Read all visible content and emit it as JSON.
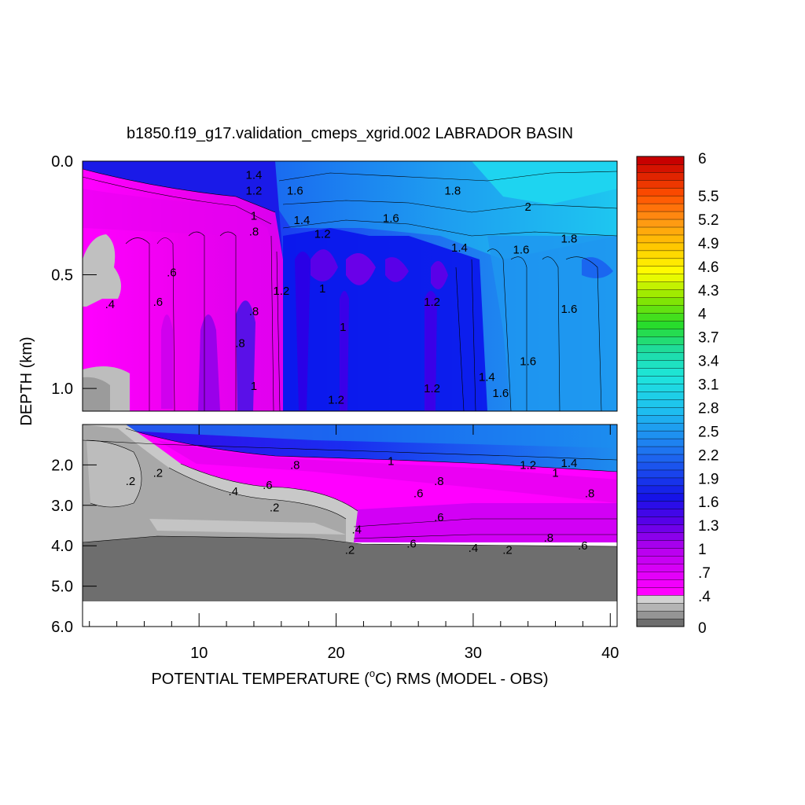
{
  "chart_data": {
    "type": "heatmap",
    "title": "b1850.f19_g17.validation_cmeps_xgrid.002 LABRADOR BASIN",
    "xlabel_pre": "POTENTIAL TEMPERATURE (",
    "xlabel_sup": "o",
    "xlabel_post": "C) RMS (MODEL - OBS)",
    "ylabel": "DEPTH (km)",
    "xlim": [
      1.5,
      40.5
    ],
    "x_ticks": [
      10,
      20,
      30,
      40
    ],
    "top_panel": {
      "ylim": [
        0.0,
        1.1
      ],
      "y_ticks": [
        "0.0",
        "0.5",
        "1.0"
      ],
      "y_values": [
        0.0,
        0.5,
        1.0
      ]
    },
    "bottom_panel": {
      "ylim": [
        1.0,
        6.0
      ],
      "y_ticks": [
        "2.0",
        "3.0",
        "4.0",
        "5.0",
        "6.0"
      ],
      "y_values": [
        2.0,
        3.0,
        4.0,
        5.0,
        6.0
      ]
    },
    "colorbar": {
      "range": [
        0,
        6
      ],
      "tick_labels": [
        "6",
        "5.5",
        "5.2",
        "4.9",
        "4.6",
        "4.3",
        "4",
        "3.7",
        "3.4",
        "3.1",
        "2.8",
        "2.5",
        "2.2",
        "1.9",
        "1.6",
        "1.3",
        "1",
        ".7",
        ".4",
        "0"
      ],
      "low_colors": [
        "#6e6e6e",
        "#959595",
        "#b4b4b4",
        "#d2d2d2"
      ]
    },
    "contour_labels": [
      {
        "text": "1.4",
        "x": 14,
        "y": 0.06,
        "panel": "top"
      },
      {
        "text": "1.2",
        "x": 14,
        "y": 0.13,
        "panel": "top"
      },
      {
        "text": "1.6",
        "x": 17,
        "y": 0.13,
        "panel": "top"
      },
      {
        "text": "1.8",
        "x": 28.5,
        "y": 0.13,
        "panel": "top"
      },
      {
        "text": "2",
        "x": 34,
        "y": 0.2,
        "panel": "top"
      },
      {
        "text": "1",
        "x": 14,
        "y": 0.24,
        "panel": "top"
      },
      {
        "text": "1.4",
        "x": 17.5,
        "y": 0.26,
        "panel": "top"
      },
      {
        "text": "1.6",
        "x": 24,
        "y": 0.25,
        "panel": "top"
      },
      {
        "text": "1.8",
        "x": 37,
        "y": 0.34,
        "panel": "top"
      },
      {
        "text": ".8",
        "x": 14,
        "y": 0.31,
        "panel": "top"
      },
      {
        "text": "1.2",
        "x": 19,
        "y": 0.32,
        "panel": "top"
      },
      {
        "text": "1.4",
        "x": 29,
        "y": 0.38,
        "panel": "top"
      },
      {
        "text": "1.6",
        "x": 33.5,
        "y": 0.39,
        "panel": "top"
      },
      {
        "text": ".6",
        "x": 8,
        "y": 0.49,
        "panel": "top"
      },
      {
        "text": "1.2",
        "x": 16,
        "y": 0.57,
        "panel": "top"
      },
      {
        "text": "1",
        "x": 19,
        "y": 0.56,
        "panel": "top"
      },
      {
        "text": ".6",
        "x": 7,
        "y": 0.62,
        "panel": "top"
      },
      {
        "text": ".4",
        "x": 3.5,
        "y": 0.63,
        "panel": "top"
      },
      {
        "text": ".8",
        "x": 14,
        "y": 0.66,
        "panel": "top"
      },
      {
        "text": "1.2",
        "x": 27,
        "y": 0.62,
        "panel": "top"
      },
      {
        "text": "1.6",
        "x": 37,
        "y": 0.65,
        "panel": "top"
      },
      {
        "text": "1",
        "x": 20.5,
        "y": 0.73,
        "panel": "top"
      },
      {
        "text": ".8",
        "x": 13,
        "y": 0.8,
        "panel": "top"
      },
      {
        "text": "1.6",
        "x": 34,
        "y": 0.88,
        "panel": "top"
      },
      {
        "text": "1.4",
        "x": 31,
        "y": 0.95,
        "panel": "top"
      },
      {
        "text": "1",
        "x": 14,
        "y": 0.99,
        "panel": "top"
      },
      {
        "text": "1.2",
        "x": 20,
        "y": 1.05,
        "panel": "top"
      },
      {
        "text": "1.2",
        "x": 27,
        "y": 1.0,
        "panel": "top"
      },
      {
        "text": "1.6",
        "x": 32,
        "y": 1.02,
        "panel": "top"
      },
      {
        "text": "1",
        "x": 24,
        "y": 1.9,
        "panel": "bottom"
      },
      {
        "text": "1.2",
        "x": 34,
        "y": 2.0,
        "panel": "bottom"
      },
      {
        "text": "1.4",
        "x": 37,
        "y": 1.95,
        "panel": "bottom"
      },
      {
        "text": ".8",
        "x": 17,
        "y": 2.0,
        "panel": "bottom"
      },
      {
        "text": ".2",
        "x": 5,
        "y": 2.4,
        "panel": "bottom"
      },
      {
        "text": ".2",
        "x": 7,
        "y": 2.2,
        "panel": "bottom"
      },
      {
        "text": "1",
        "x": 36,
        "y": 2.2,
        "panel": "bottom"
      },
      {
        "text": ".8",
        "x": 27.5,
        "y": 2.4,
        "panel": "bottom"
      },
      {
        "text": ".6",
        "x": 15,
        "y": 2.5,
        "panel": "bottom"
      },
      {
        "text": ".4",
        "x": 12.5,
        "y": 2.65,
        "panel": "bottom"
      },
      {
        "text": ".6",
        "x": 26,
        "y": 2.7,
        "panel": "bottom"
      },
      {
        "text": ".8",
        "x": 38.5,
        "y": 2.7,
        "panel": "bottom"
      },
      {
        "text": ".2",
        "x": 15.5,
        "y": 3.05,
        "panel": "bottom"
      },
      {
        "text": ".6",
        "x": 27.5,
        "y": 3.3,
        "panel": "bottom"
      },
      {
        "text": ".4",
        "x": 21.5,
        "y": 3.6,
        "panel": "bottom"
      },
      {
        "text": ".8",
        "x": 35.5,
        "y": 3.8,
        "panel": "bottom"
      },
      {
        "text": ".6",
        "x": 25.5,
        "y": 3.95,
        "panel": "bottom"
      },
      {
        "text": ".6",
        "x": 38,
        "y": 4.0,
        "panel": "bottom"
      },
      {
        "text": ".4",
        "x": 30,
        "y": 4.05,
        "panel": "bottom"
      },
      {
        "text": ".2",
        "x": 21,
        "y": 4.1,
        "panel": "bottom"
      },
      {
        "text": ".2",
        "x": 32.5,
        "y": 4.1,
        "panel": "bottom"
      }
    ]
  }
}
